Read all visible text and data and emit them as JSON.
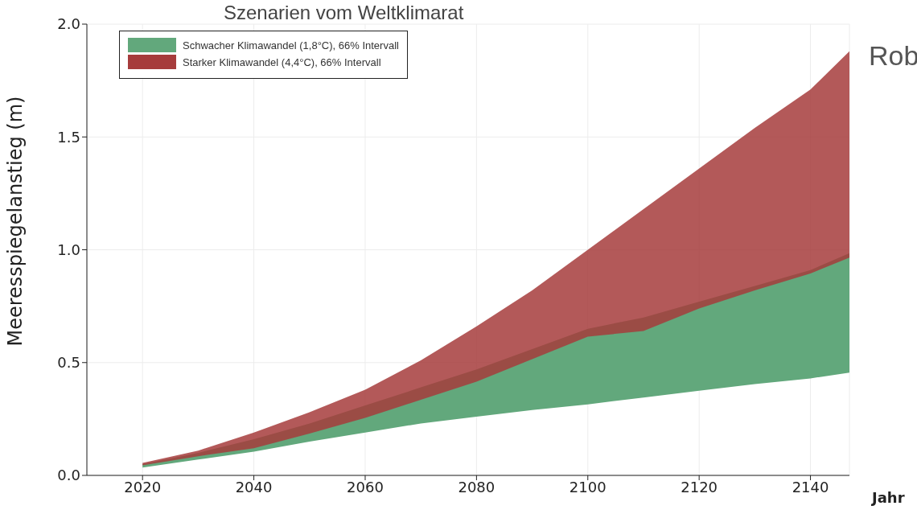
{
  "chart_data": {
    "type": "area",
    "title": "Szenarien vom Weltklimarat",
    "xlabel": "Jahr",
    "ylabel": "Meeresspiegelanstieg (m)",
    "annotations": [
      "Rob"
    ],
    "x": [
      2020,
      2030,
      2040,
      2050,
      2060,
      2070,
      2080,
      2090,
      2100,
      2110,
      2120,
      2130,
      2140,
      2147
    ],
    "series": [
      {
        "name": "Schwacher Klimawandel (1,8°C), 66% Intervall",
        "color": "#62a87c",
        "values": [
          null,
          null,
          null,
          null,
          null,
          null,
          null,
          null,
          null,
          null,
          null,
          null,
          null,
          null
        ],
        "lower": [
          0.035,
          0.07,
          0.105,
          0.15,
          0.19,
          0.23,
          0.26,
          0.29,
          0.315,
          0.345,
          0.375,
          0.405,
          0.43,
          0.455
        ],
        "upper": [
          0.05,
          0.1,
          0.16,
          0.23,
          0.31,
          0.39,
          0.47,
          0.56,
          0.65,
          0.7,
          0.77,
          0.84,
          0.91,
          0.985
        ]
      },
      {
        "name": "Starker Klimawandel (4,4°C), 66% Intervall",
        "color": "#a63c3c",
        "values": [
          null,
          null,
          null,
          null,
          null,
          null,
          null,
          null,
          null,
          null,
          null,
          null,
          null,
          null
        ],
        "lower": [
          0.045,
          0.085,
          0.12,
          0.185,
          0.255,
          0.335,
          0.415,
          0.515,
          0.615,
          0.64,
          0.74,
          0.82,
          0.895,
          0.965
        ],
        "upper": [
          0.055,
          0.11,
          0.19,
          0.28,
          0.38,
          0.51,
          0.66,
          0.82,
          1.0,
          1.18,
          1.36,
          1.54,
          1.71,
          1.88
        ]
      }
    ],
    "xlim": [
      2010,
      2147
    ],
    "xticks": [
      2020,
      2040,
      2060,
      2080,
      2100,
      2120,
      2140
    ],
    "ylim": [
      0,
      2
    ],
    "yticks": [
      {
        "value": 0,
        "label": "0.0"
      },
      {
        "value": 0.5,
        "label": "0.5"
      },
      {
        "value": 1,
        "label": "1.0"
      },
      {
        "value": 1.5,
        "label": "1.5"
      },
      {
        "value": 2,
        "label": "2.0"
      }
    ],
    "grid": true,
    "legend": "top left"
  }
}
